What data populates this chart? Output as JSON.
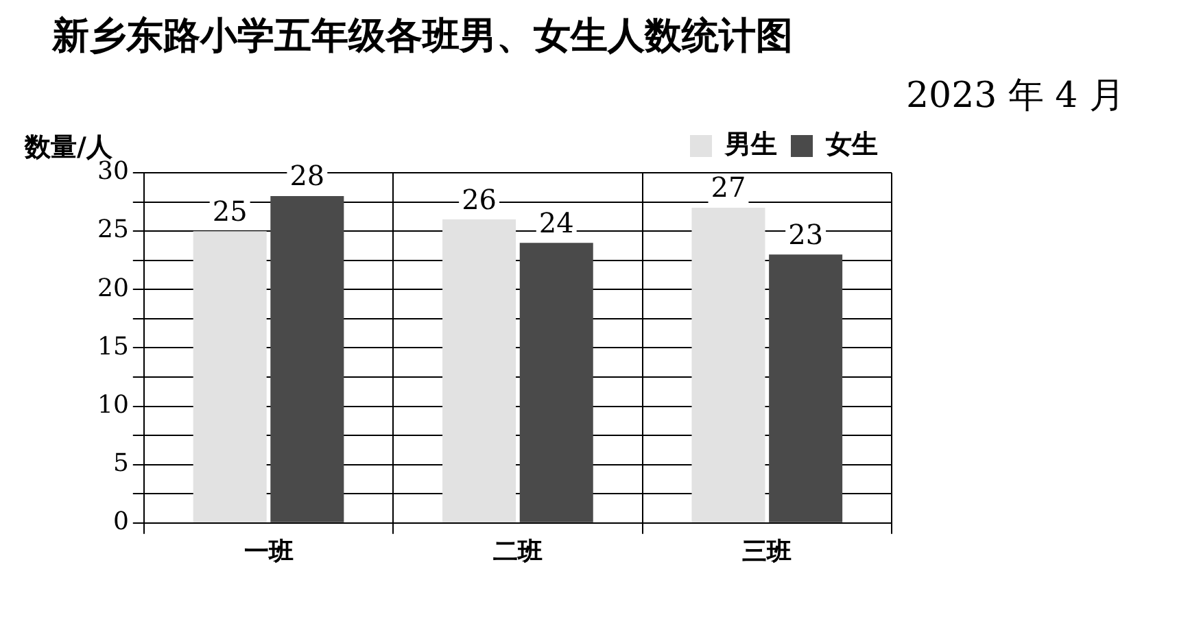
{
  "chart_data": {
    "type": "bar",
    "title": "新乡东路小学五年级各班男、女生人数统计图",
    "subtitle": "2023 年 4 月",
    "ylabel": "数量/人",
    "categories": [
      "一班",
      "二班",
      "三班"
    ],
    "series": [
      {
        "name": "男生",
        "color": "#e2e2e2",
        "values": [
          25,
          26,
          27
        ]
      },
      {
        "name": "女生",
        "color": "#4a4a4a",
        "values": [
          28,
          24,
          23
        ]
      }
    ],
    "ylim": [
      0,
      30
    ],
    "yticks": [
      0,
      {
        "value": 2.5,
        "label": null
      },
      5,
      {
        "value": 7.5,
        "label": null
      },
      10,
      {
        "value": 12.5,
        "label": null
      },
      15,
      {
        "value": 17.5,
        "label": null
      },
      20,
      {
        "value": 22.5,
        "label": null
      },
      25,
      {
        "value": 27.5,
        "label": null
      },
      30
    ],
    "grid": true,
    "legend": "top right",
    "data_labels": true
  }
}
